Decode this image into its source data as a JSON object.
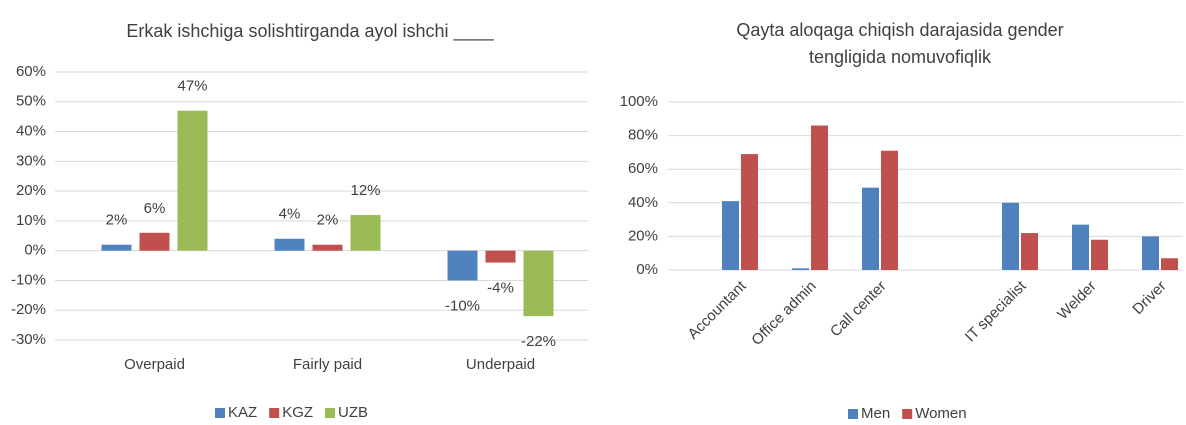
{
  "chart_data": [
    {
      "type": "bar",
      "title": "Erkak ishchiga solishtirganda ayol ishchi ____",
      "categories": [
        "Overpaid",
        "Fairly paid",
        "Underpaid"
      ],
      "series": [
        {
          "name": "KAZ",
          "color": "#4f81bd",
          "values": [
            2,
            4,
            -10
          ],
          "value_labels": [
            "2%",
            "4%",
            "-10%"
          ]
        },
        {
          "name": "KGZ",
          "color": "#c0504d",
          "values": [
            6,
            2,
            -4
          ],
          "value_labels": [
            "6%",
            "2%",
            "-4%"
          ]
        },
        {
          "name": "UZB",
          "color": "#9bbb59",
          "values": [
            47,
            12,
            -22
          ],
          "value_labels": [
            "47%",
            "12%",
            "-22%"
          ]
        }
      ],
      "ylim": [
        -30,
        60
      ],
      "yticks": [
        {
          "value": -30,
          "label": "-30%"
        },
        {
          "value": -20,
          "label": "-20%"
        },
        {
          "value": -10,
          "label": "-10%"
        },
        {
          "value": 0,
          "label": "0%"
        },
        {
          "value": 10,
          "label": "10%"
        },
        {
          "value": 20,
          "label": "20%"
        },
        {
          "value": 30,
          "label": "30%"
        },
        {
          "value": 40,
          "label": "40%"
        },
        {
          "value": 50,
          "label": "50%"
        },
        {
          "value": 60,
          "label": "60%"
        }
      ],
      "grid": true,
      "legend": "bottom"
    },
    {
      "type": "bar",
      "title": "Qayta aloqaga chiqish darajasida gender tengligida nomuvofiqlik",
      "categories": [
        "Accountant",
        "Office admin",
        "Call center",
        null,
        "IT specialist",
        "Welder",
        "Driver"
      ],
      "series": [
        {
          "name": "Men",
          "color": "#4f81bd",
          "values": [
            41,
            1,
            49,
            null,
            40,
            27,
            20
          ]
        },
        {
          "name": "Women",
          "color": "#c0504d",
          "values": [
            69,
            86,
            71,
            null,
            22,
            18,
            7
          ]
        }
      ],
      "ylim": [
        0,
        100
      ],
      "yticks": [
        {
          "value": 0,
          "label": "0%"
        },
        {
          "value": 20,
          "label": "20%"
        },
        {
          "value": 40,
          "label": "40%"
        },
        {
          "value": 60,
          "label": "60%"
        },
        {
          "value": 80,
          "label": "80%"
        },
        {
          "value": 100,
          "label": "100%"
        }
      ],
      "grid": true,
      "legend": "bottom"
    }
  ]
}
